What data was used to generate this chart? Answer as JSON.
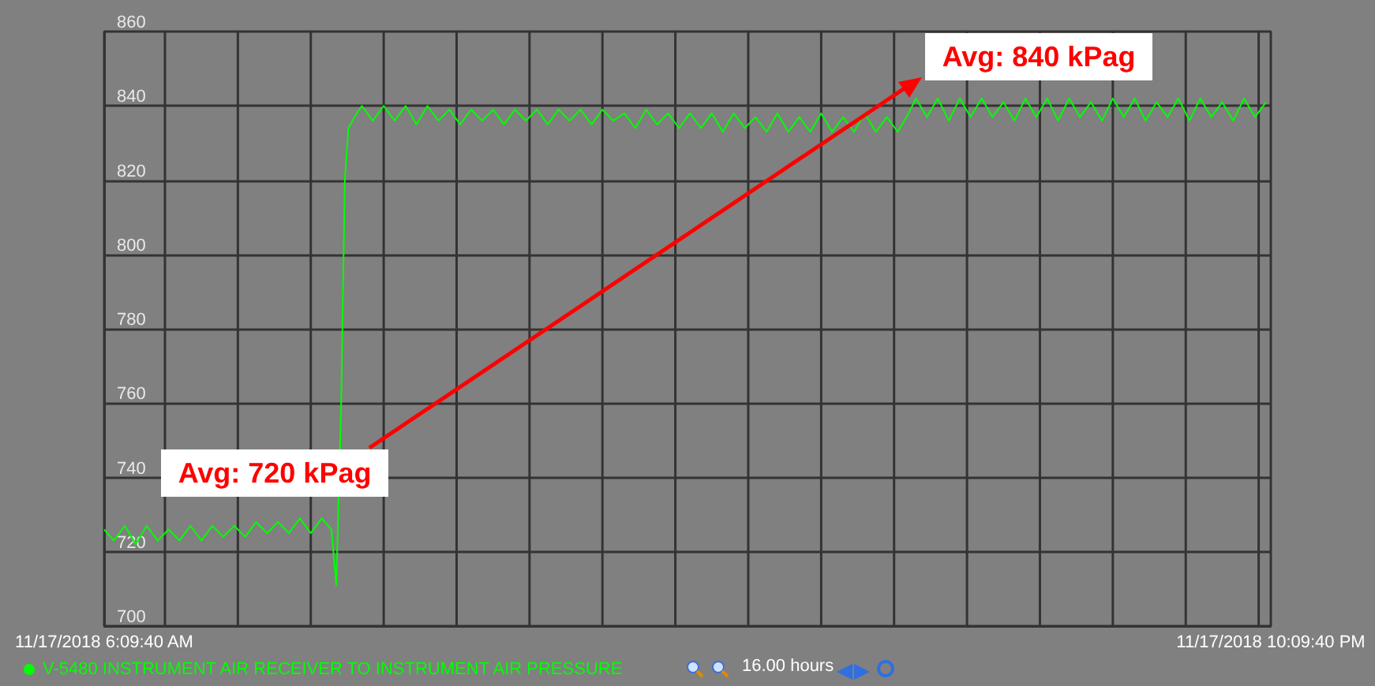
{
  "chart_data": {
    "type": "line",
    "xlim": [
      "2018-11-17T06:10",
      "2018-11-17T22:10"
    ],
    "xticks": [
      {
        "value": "2018-11-17T06:10",
        "label": "11/17/2018 6:09:40 AM"
      },
      {
        "value": "2018-11-17T07:00",
        "label": null
      },
      {
        "value": "2018-11-17T08:00",
        "label": null
      },
      {
        "value": "2018-11-17T09:00",
        "label": null
      },
      {
        "value": "2018-11-17T10:00",
        "label": null
      },
      {
        "value": "2018-11-17T11:00",
        "label": null
      },
      {
        "value": "2018-11-17T12:00",
        "label": null
      },
      {
        "value": "2018-11-17T13:00",
        "label": null
      },
      {
        "value": "2018-11-17T14:00",
        "label": null
      },
      {
        "value": "2018-11-17T15:00",
        "label": null
      },
      {
        "value": "2018-11-17T16:00",
        "label": null
      },
      {
        "value": "2018-11-17T17:00",
        "label": null
      },
      {
        "value": "2018-11-17T18:00",
        "label": null
      },
      {
        "value": "2018-11-17T19:00",
        "label": null
      },
      {
        "value": "2018-11-17T20:00",
        "label": null
      },
      {
        "value": "2018-11-17T21:00",
        "label": null
      },
      {
        "value": "2018-11-17T22:00",
        "label": null
      },
      {
        "value": "2018-11-17T22:10",
        "label": "11/17/2018 10:09:40 PM"
      }
    ],
    "ylim": [
      700,
      860
    ],
    "yticks": [
      700,
      720,
      740,
      760,
      780,
      800,
      820,
      840,
      860
    ],
    "grid": true,
    "legend": "bottom left",
    "marker": "none",
    "line_style": "solid",
    "x": [
      "2018-11-17T06:10",
      "2018-11-17T06:18",
      "2018-11-17T06:27",
      "2018-11-17T06:36",
      "2018-11-17T06:45",
      "2018-11-17T06:54",
      "2018-11-17T07:03",
      "2018-11-17T07:12",
      "2018-11-17T07:21",
      "2018-11-17T07:30",
      "2018-11-17T07:39",
      "2018-11-17T07:48",
      "2018-11-17T07:57",
      "2018-11-17T08:06",
      "2018-11-17T08:15",
      "2018-11-17T08:24",
      "2018-11-17T08:33",
      "2018-11-17T08:42",
      "2018-11-17T08:51",
      "2018-11-17T09:00",
      "2018-11-17T09:09",
      "2018-11-17T09:17",
      "2018-11-17T09:21",
      "2018-11-17T09:25",
      "2018-11-17T09:28",
      "2018-11-17T09:31",
      "2018-11-17T09:36",
      "2018-11-17T09:42",
      "2018-11-17T09:51",
      "2018-11-17T10:00",
      "2018-11-17T10:09",
      "2018-11-17T10:18",
      "2018-11-17T10:27",
      "2018-11-17T10:36",
      "2018-11-17T10:45",
      "2018-11-17T10:54",
      "2018-11-17T11:03",
      "2018-11-17T11:12",
      "2018-11-17T11:21",
      "2018-11-17T11:30",
      "2018-11-17T11:39",
      "2018-11-17T11:48",
      "2018-11-17T11:57",
      "2018-11-17T12:06",
      "2018-11-17T12:15",
      "2018-11-17T12:24",
      "2018-11-17T12:33",
      "2018-11-17T12:42",
      "2018-11-17T12:51",
      "2018-11-17T13:00",
      "2018-11-17T13:09",
      "2018-11-17T13:18",
      "2018-11-17T13:27",
      "2018-11-17T13:36",
      "2018-11-17T13:45",
      "2018-11-17T13:54",
      "2018-11-17T14:03",
      "2018-11-17T14:12",
      "2018-11-17T14:21",
      "2018-11-17T14:30",
      "2018-11-17T14:39",
      "2018-11-17T14:48",
      "2018-11-17T14:57",
      "2018-11-17T15:06",
      "2018-11-17T15:15",
      "2018-11-17T15:24",
      "2018-11-17T15:33",
      "2018-11-17T15:42",
      "2018-11-17T15:51",
      "2018-11-17T16:00",
      "2018-11-17T16:09",
      "2018-11-17T16:18",
      "2018-11-17T16:27",
      "2018-11-17T16:36",
      "2018-11-17T16:45",
      "2018-11-17T16:54",
      "2018-11-17T17:03",
      "2018-11-17T17:12",
      "2018-11-17T17:18",
      "2018-11-17T17:27",
      "2018-11-17T17:36",
      "2018-11-17T17:45",
      "2018-11-17T17:54",
      "2018-11-17T18:03",
      "2018-11-17T18:12",
      "2018-11-17T18:21",
      "2018-11-17T18:30",
      "2018-11-17T18:39",
      "2018-11-17T18:48",
      "2018-11-17T18:57",
      "2018-11-17T19:06",
      "2018-11-17T19:15",
      "2018-11-17T19:24",
      "2018-11-17T19:33",
      "2018-11-17T19:42",
      "2018-11-17T19:51",
      "2018-11-17T20:00",
      "2018-11-17T20:09",
      "2018-11-17T20:18",
      "2018-11-17T20:27",
      "2018-11-17T20:36",
      "2018-11-17T20:45",
      "2018-11-17T20:54",
      "2018-11-17T21:03",
      "2018-11-17T21:12",
      "2018-11-17T21:21",
      "2018-11-17T21:30",
      "2018-11-17T21:39",
      "2018-11-17T21:48",
      "2018-11-17T21:57",
      "2018-11-17T22:06"
    ],
    "series": [
      {
        "name": "V-5480 INSTRUMENT AIR RECEIVER TO INSTRUMENT AIR PRESSURE",
        "color": "#00ff00",
        "values": [
          726,
          723,
          727,
          722,
          727,
          723,
          726,
          723,
          727,
          723,
          727,
          724,
          727,
          724,
          728,
          725,
          728,
          725,
          729,
          725,
          729,
          726,
          711,
          760,
          820,
          834,
          837,
          840,
          836,
          840,
          836,
          840,
          835,
          840,
          836,
          839,
          835,
          839,
          836,
          839,
          835,
          839,
          836,
          839,
          835,
          839,
          836,
          839,
          835,
          839,
          836,
          838,
          834,
          839,
          835,
          838,
          834,
          838,
          834,
          838,
          833,
          838,
          834,
          837,
          833,
          838,
          833,
          837,
          833,
          838,
          833,
          837,
          833,
          838,
          833,
          837,
          833,
          838,
          842,
          837,
          842,
          836,
          842,
          837,
          842,
          837,
          841,
          836,
          842,
          837,
          842,
          836,
          842,
          837,
          841,
          836,
          842,
          837,
          842,
          836,
          841,
          837,
          842,
          836,
          842,
          837,
          841,
          836,
          842,
          837,
          841
        ]
      }
    ],
    "annotations": [
      "Avg: 720 kPag",
      "Avg: 840 kPag",
      "16.00 hours"
    ]
  }
}
